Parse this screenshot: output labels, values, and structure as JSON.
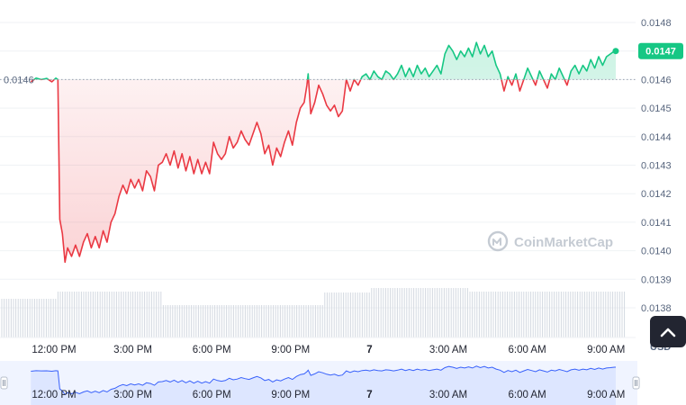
{
  "chart_data": {
    "type": "line",
    "y_ticks": [
      "0.0148",
      "0.0147",
      "0.0146",
      "0.0145",
      "0.0144",
      "0.0143",
      "0.0142",
      "0.0141",
      "0.0140",
      "0.0139",
      "0.0138"
    ],
    "ylim": [
      0.01376,
      0.01484
    ],
    "x_ticks": [
      "12:00 PM",
      "3:00 PM",
      "6:00 PM",
      "9:00 PM",
      "7",
      "3:00 AM",
      "6:00 AM",
      "9:00 AM"
    ],
    "x_hours": [
      0,
      3,
      6,
      9,
      12,
      15,
      18,
      21
    ],
    "open_value": 0.0146,
    "open_label": "0.0146",
    "current_label": "0.0147",
    "currency": "USD",
    "watermark": "CoinMarketCap",
    "colors": {
      "up": "#16c784",
      "down": "#ea3943",
      "accent": "#16c784",
      "nav": "#3861fb"
    },
    "series": [
      {
        "values": [
          [
            -0.95,
            0.014592
          ],
          [
            -0.75,
            0.014605
          ],
          [
            -0.55,
            0.0146
          ],
          [
            -0.35,
            0.014604
          ],
          [
            -0.15,
            0.014592
          ],
          [
            0.0,
            0.014605
          ],
          [
            0.08,
            0.0146
          ],
          [
            0.15,
            0.01411
          ],
          [
            0.25,
            0.01406
          ],
          [
            0.35,
            0.01396
          ],
          [
            0.45,
            0.01401
          ],
          [
            0.6,
            0.01398
          ],
          [
            0.75,
            0.01402
          ],
          [
            0.9,
            0.01398
          ],
          [
            1.05,
            0.01403
          ],
          [
            1.2,
            0.01406
          ],
          [
            1.35,
            0.01401
          ],
          [
            1.5,
            0.01405
          ],
          [
            1.65,
            0.01401
          ],
          [
            1.8,
            0.01407
          ],
          [
            1.95,
            0.01403
          ],
          [
            2.1,
            0.0141
          ],
          [
            2.25,
            0.01413
          ],
          [
            2.4,
            0.01419
          ],
          [
            2.55,
            0.01423
          ],
          [
            2.7,
            0.0142
          ],
          [
            2.85,
            0.01425
          ],
          [
            3.0,
            0.01422
          ],
          [
            3.15,
            0.01425
          ],
          [
            3.3,
            0.01421
          ],
          [
            3.45,
            0.01428
          ],
          [
            3.6,
            0.01426
          ],
          [
            3.75,
            0.01421
          ],
          [
            3.9,
            0.0143
          ],
          [
            4.05,
            0.01431
          ],
          [
            4.2,
            0.01434
          ],
          [
            4.35,
            0.0143
          ],
          [
            4.5,
            0.01435
          ],
          [
            4.65,
            0.01429
          ],
          [
            4.8,
            0.01434
          ],
          [
            4.95,
            0.01428
          ],
          [
            5.1,
            0.01433
          ],
          [
            5.25,
            0.01427
          ],
          [
            5.4,
            0.01432
          ],
          [
            5.55,
            0.01427
          ],
          [
            5.7,
            0.01431
          ],
          [
            5.85,
            0.01427
          ],
          [
            6.0,
            0.01438
          ],
          [
            6.15,
            0.01434
          ],
          [
            6.3,
            0.01432
          ],
          [
            6.45,
            0.01434
          ],
          [
            6.6,
            0.0144
          ],
          [
            6.75,
            0.01436
          ],
          [
            6.9,
            0.01438
          ],
          [
            7.05,
            0.01442
          ],
          [
            7.2,
            0.01439
          ],
          [
            7.35,
            0.01437
          ],
          [
            7.5,
            0.01441
          ],
          [
            7.65,
            0.01445
          ],
          [
            7.8,
            0.01441
          ],
          [
            7.95,
            0.01434
          ],
          [
            8.1,
            0.01437
          ],
          [
            8.25,
            0.0143
          ],
          [
            8.4,
            0.01436
          ],
          [
            8.55,
            0.01433
          ],
          [
            8.7,
            0.01438
          ],
          [
            8.85,
            0.01442
          ],
          [
            9.0,
            0.01437
          ],
          [
            9.15,
            0.01445
          ],
          [
            9.3,
            0.0145
          ],
          [
            9.45,
            0.01452
          ],
          [
            9.55,
            0.01458
          ],
          [
            9.6,
            0.01462
          ],
          [
            9.7,
            0.01448
          ],
          [
            9.85,
            0.01452
          ],
          [
            10.0,
            0.01458
          ],
          [
            10.15,
            0.01455
          ],
          [
            10.3,
            0.01451
          ],
          [
            10.45,
            0.01449
          ],
          [
            10.6,
            0.01451
          ],
          [
            10.75,
            0.01447
          ],
          [
            10.9,
            0.01449
          ],
          [
            11.05,
            0.0146
          ],
          [
            11.2,
            0.01456
          ],
          [
            11.35,
            0.0146
          ],
          [
            11.5,
            0.01458
          ],
          [
            11.65,
            0.01461
          ],
          [
            11.8,
            0.01462
          ],
          [
            11.95,
            0.0146
          ],
          [
            12.1,
            0.01463
          ],
          [
            12.25,
            0.01461
          ],
          [
            12.4,
            0.0146
          ],
          [
            12.55,
            0.01463
          ],
          [
            12.7,
            0.01462
          ],
          [
            12.85,
            0.0146
          ],
          [
            13.0,
            0.01462
          ],
          [
            13.15,
            0.01465
          ],
          [
            13.3,
            0.01461
          ],
          [
            13.45,
            0.01464
          ],
          [
            13.6,
            0.01461
          ],
          [
            13.75,
            0.01465
          ],
          [
            13.9,
            0.01462
          ],
          [
            14.05,
            0.01464
          ],
          [
            14.2,
            0.01461
          ],
          [
            14.35,
            0.01463
          ],
          [
            14.5,
            0.01465
          ],
          [
            14.65,
            0.01462
          ],
          [
            14.8,
            0.01469
          ],
          [
            14.95,
            0.01472
          ],
          [
            15.1,
            0.0147
          ],
          [
            15.25,
            0.01467
          ],
          [
            15.4,
            0.0147
          ],
          [
            15.55,
            0.01468
          ],
          [
            15.7,
            0.01471
          ],
          [
            15.85,
            0.01468
          ],
          [
            16.0,
            0.01473
          ],
          [
            16.15,
            0.01469
          ],
          [
            16.3,
            0.01472
          ],
          [
            16.45,
            0.01468
          ],
          [
            16.6,
            0.0147
          ],
          [
            16.75,
            0.01465
          ],
          [
            16.9,
            0.01462
          ],
          [
            17.05,
            0.01456
          ],
          [
            17.2,
            0.01461
          ],
          [
            17.35,
            0.01458
          ],
          [
            17.5,
            0.01462
          ],
          [
            17.65,
            0.01456
          ],
          [
            17.8,
            0.0146
          ],
          [
            17.95,
            0.01464
          ],
          [
            18.1,
            0.01461
          ],
          [
            18.25,
            0.01458
          ],
          [
            18.4,
            0.01463
          ],
          [
            18.55,
            0.0146
          ],
          [
            18.7,
            0.01457
          ],
          [
            18.85,
            0.01462
          ],
          [
            19.0,
            0.0146
          ],
          [
            19.15,
            0.01464
          ],
          [
            19.3,
            0.01461
          ],
          [
            19.45,
            0.01458
          ],
          [
            19.6,
            0.01463
          ],
          [
            19.75,
            0.01465
          ],
          [
            19.9,
            0.01462
          ],
          [
            20.05,
            0.01465
          ],
          [
            20.2,
            0.01463
          ],
          [
            20.35,
            0.01467
          ],
          [
            20.5,
            0.01464
          ],
          [
            20.65,
            0.01468
          ],
          [
            20.8,
            0.01465
          ],
          [
            20.95,
            0.01468
          ],
          [
            21.1,
            0.01469
          ],
          [
            21.25,
            0.0147
          ],
          [
            21.3,
            0.0147
          ]
        ]
      }
    ]
  }
}
